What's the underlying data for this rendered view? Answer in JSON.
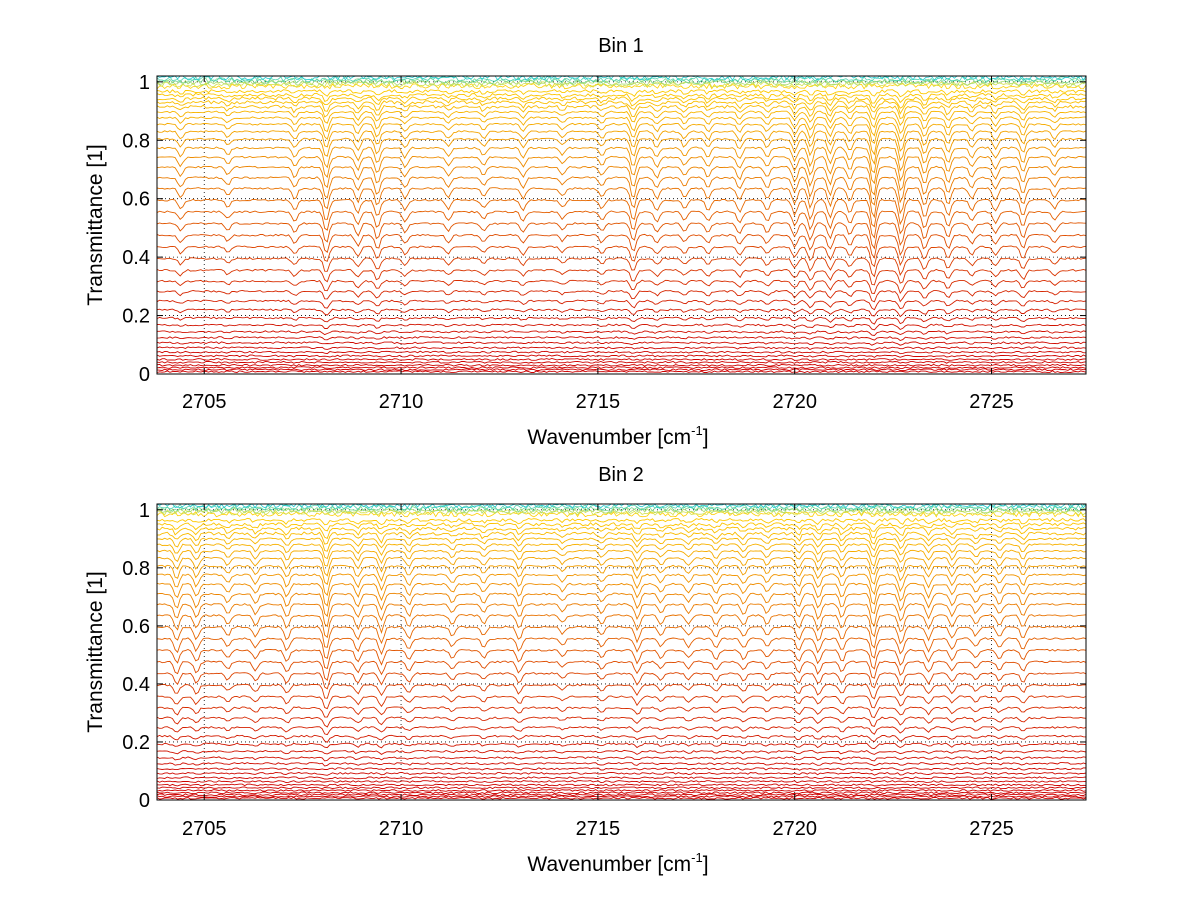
{
  "figure": {
    "background": "#ffffff"
  },
  "chart_data": [
    {
      "type": "line",
      "title": "Bin 1",
      "xlabel": "Wavenumber [cm",
      "xlabel_sup": "-1",
      "xlabel_close": "]",
      "ylabel": "Transmittance [1]",
      "xlim": [
        2703.8,
        2727.4
      ],
      "ylim": [
        0,
        1.02
      ],
      "xticks": [
        "2705",
        "2710",
        "2715",
        "2720",
        "2725"
      ],
      "yticks": [
        "0",
        "0.2",
        "0.4",
        "0.6",
        "0.8",
        "1"
      ],
      "grid": "dotted",
      "colormap": "autumn-to-jet (red at low transmittance, orange, yellow, cyan near 1)",
      "n_curves": 40,
      "curve_baselines": [
        0.008,
        0.015,
        0.022,
        0.03,
        0.04,
        0.05,
        0.062,
        0.075,
        0.09,
        0.107,
        0.125,
        0.145,
        0.168,
        0.192,
        0.22,
        0.25,
        0.283,
        0.318,
        0.355,
        0.395,
        0.435,
        0.475,
        0.515,
        0.555,
        0.595,
        0.635,
        0.672,
        0.708,
        0.742,
        0.774,
        0.804,
        0.83,
        0.855,
        0.877,
        0.897,
        0.915,
        0.93,
        0.943,
        0.955,
        0.968
      ],
      "absorption_lines": [
        {
          "x": 2704.4,
          "depth": 0.3
        },
        {
          "x": 2705.6,
          "depth": 0.25
        },
        {
          "x": 2707.3,
          "depth": 0.35
        },
        {
          "x": 2708.1,
          "depth": 0.75
        },
        {
          "x": 2708.9,
          "depth": 0.45
        },
        {
          "x": 2709.4,
          "depth": 0.6
        },
        {
          "x": 2710.1,
          "depth": 0.35
        },
        {
          "x": 2711.2,
          "depth": 0.3
        },
        {
          "x": 2712.1,
          "depth": 0.28
        },
        {
          "x": 2713.1,
          "depth": 0.35
        },
        {
          "x": 2714.1,
          "depth": 0.25
        },
        {
          "x": 2715.1,
          "depth": 0.3
        },
        {
          "x": 2715.9,
          "depth": 0.7
        },
        {
          "x": 2716.5,
          "depth": 0.35
        },
        {
          "x": 2717.2,
          "depth": 0.3
        },
        {
          "x": 2717.8,
          "depth": 0.35
        },
        {
          "x": 2718.6,
          "depth": 0.4
        },
        {
          "x": 2719.3,
          "depth": 0.35
        },
        {
          "x": 2720.0,
          "depth": 0.5
        },
        {
          "x": 2720.4,
          "depth": 0.65
        },
        {
          "x": 2720.9,
          "depth": 0.6
        },
        {
          "x": 2721.4,
          "depth": 0.45
        },
        {
          "x": 2722.0,
          "depth": 1.0
        },
        {
          "x": 2722.7,
          "depth": 0.85
        },
        {
          "x": 2723.3,
          "depth": 0.6
        },
        {
          "x": 2723.9,
          "depth": 0.55
        },
        {
          "x": 2724.5,
          "depth": 0.35
        },
        {
          "x": 2725.1,
          "depth": 0.4
        },
        {
          "x": 2725.8,
          "depth": 0.55
        },
        {
          "x": 2726.6,
          "depth": 0.3
        }
      ]
    },
    {
      "type": "line",
      "title": "Bin 2",
      "xlabel": "Wavenumber [cm",
      "xlabel_sup": "-1",
      "xlabel_close": "]",
      "ylabel": "Transmittance [1]",
      "xlim": [
        2703.8,
        2727.4
      ],
      "ylim": [
        0,
        1.02
      ],
      "xticks": [
        "2705",
        "2710",
        "2715",
        "2720",
        "2725"
      ],
      "yticks": [
        "0",
        "0.2",
        "0.4",
        "0.6",
        "0.8",
        "1"
      ],
      "grid": "dotted",
      "colormap": "autumn-to-jet (red at low transmittance, orange, yellow, cyan near 1)",
      "n_curves": 40,
      "curve_baselines": [
        0.006,
        0.012,
        0.018,
        0.025,
        0.033,
        0.042,
        0.052,
        0.064,
        0.077,
        0.092,
        0.108,
        0.126,
        0.146,
        0.168,
        0.193,
        0.22,
        0.25,
        0.283,
        0.318,
        0.356,
        0.396,
        0.436,
        0.476,
        0.516,
        0.556,
        0.596,
        0.636,
        0.674,
        0.71,
        0.744,
        0.776,
        0.806,
        0.833,
        0.858,
        0.88,
        0.9,
        0.918,
        0.935,
        0.95,
        0.965
      ],
      "absorption_lines": [
        {
          "x": 2704.3,
          "depth": 0.5
        },
        {
          "x": 2704.8,
          "depth": 0.45
        },
        {
          "x": 2705.6,
          "depth": 0.3
        },
        {
          "x": 2706.3,
          "depth": 0.35
        },
        {
          "x": 2707.1,
          "depth": 0.45
        },
        {
          "x": 2708.1,
          "depth": 0.8
        },
        {
          "x": 2708.9,
          "depth": 0.45
        },
        {
          "x": 2709.5,
          "depth": 0.55
        },
        {
          "x": 2710.2,
          "depth": 0.4
        },
        {
          "x": 2711.3,
          "depth": 0.3
        },
        {
          "x": 2712.1,
          "depth": 0.3
        },
        {
          "x": 2713.0,
          "depth": 0.45
        },
        {
          "x": 2714.1,
          "depth": 0.25
        },
        {
          "x": 2715.1,
          "depth": 0.3
        },
        {
          "x": 2716.0,
          "depth": 0.5
        },
        {
          "x": 2716.6,
          "depth": 0.3
        },
        {
          "x": 2717.3,
          "depth": 0.3
        },
        {
          "x": 2718.0,
          "depth": 0.35
        },
        {
          "x": 2718.7,
          "depth": 0.35
        },
        {
          "x": 2719.3,
          "depth": 0.3
        },
        {
          "x": 2720.1,
          "depth": 0.45
        },
        {
          "x": 2720.6,
          "depth": 0.5
        },
        {
          "x": 2721.2,
          "depth": 0.45
        },
        {
          "x": 2722.0,
          "depth": 0.75
        },
        {
          "x": 2722.7,
          "depth": 0.6
        },
        {
          "x": 2723.4,
          "depth": 0.45
        },
        {
          "x": 2724.0,
          "depth": 0.4
        },
        {
          "x": 2724.6,
          "depth": 0.3
        },
        {
          "x": 2725.2,
          "depth": 0.35
        },
        {
          "x": 2725.8,
          "depth": 0.4
        }
      ]
    }
  ]
}
